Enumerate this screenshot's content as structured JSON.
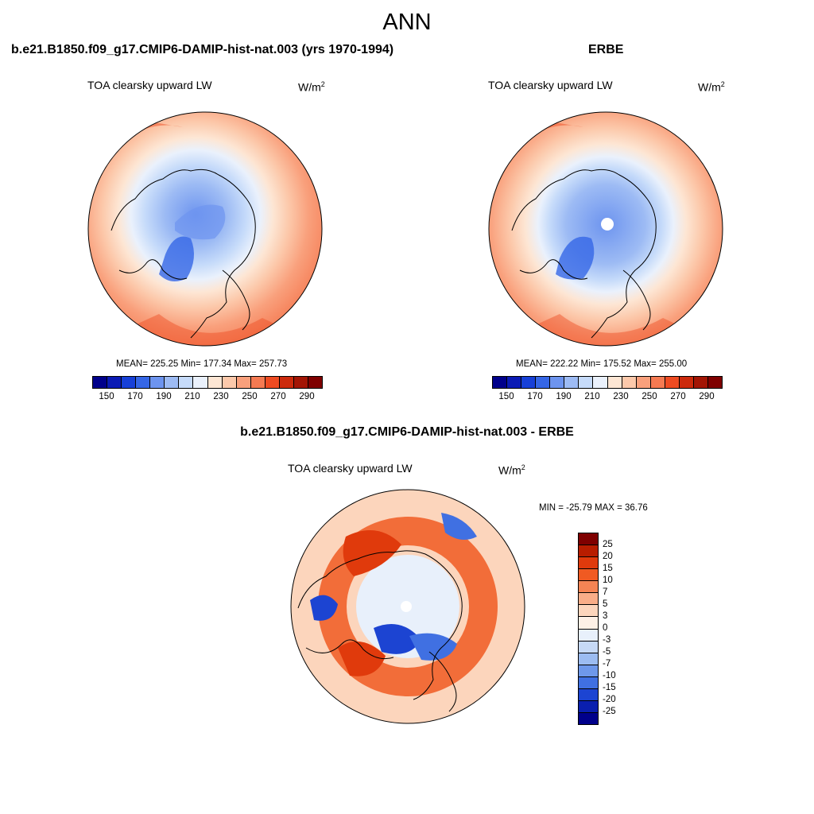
{
  "main_title": "ANN",
  "panels": {
    "model": {
      "title": "b.e21.B1850.f09_g17.CMIP6-DAMIP-hist-nat.003 (yrs 1970-1994)",
      "variable": "TOA clearsky upward LW",
      "units_base": "W/m",
      "units_sup": "2",
      "stats": "MEAN= 225.25  Min= 177.34  Max= 257.73",
      "colorbar_ticks": [
        "150",
        "170",
        "190",
        "210",
        "230",
        "250",
        "270",
        "290"
      ]
    },
    "obs": {
      "title": "ERBE",
      "variable": "TOA clearsky upward LW",
      "units_base": "W/m",
      "units_sup": "2",
      "stats": "MEAN= 222.22  Min= 175.52  Max= 255.00",
      "colorbar_ticks": [
        "150",
        "170",
        "190",
        "210",
        "230",
        "250",
        "270",
        "290"
      ]
    },
    "diff": {
      "title": "b.e21.B1850.f09_g17.CMIP6-DAMIP-hist-nat.003 - ERBE",
      "variable": "TOA clearsky upward LW",
      "units_base": "W/m",
      "units_sup": "2",
      "stats": "MIN = -25.79 MAX =  36.76",
      "colorbar_ticks": [
        "25",
        "20",
        "15",
        "10",
        "7",
        "5",
        "3",
        "0",
        "-3",
        "-5",
        "-7",
        "-10",
        "-15",
        "-20",
        "-25"
      ]
    }
  },
  "colors": {
    "abs_scale": [
      "#00008b",
      "#0b1bb5",
      "#1740d8",
      "#3566e6",
      "#6d94ef",
      "#9dbbf4",
      "#c6dbfa",
      "#eaf1fc",
      "#fde6d4",
      "#fcc9ab",
      "#f9a07c",
      "#f57a52",
      "#ee4b22",
      "#cc2a0c",
      "#a31505",
      "#7f0000"
    ],
    "diff_scale": [
      "#7f0000",
      "#b81d00",
      "#e03a0c",
      "#f05a22",
      "#f58454",
      "#f9ad88",
      "#fcd5bc",
      "#fdf0e6",
      "#e8f0fb",
      "#c6d9f6",
      "#9cbcf1",
      "#6e98ea",
      "#4070e2",
      "#1c44d2",
      "#0a1fae",
      "#00008b"
    ]
  }
}
